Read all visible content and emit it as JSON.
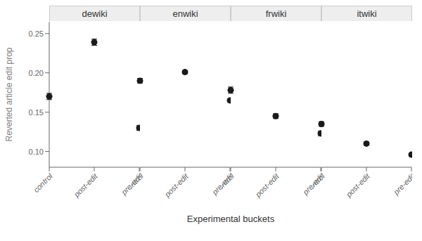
{
  "chart_data": {
    "type": "scatter",
    "xlabel": "Experimental buckets",
    "ylabel": "Reverted article edit prop",
    "categories": [
      "control",
      "post-edit",
      "pre-edit"
    ],
    "panels": [
      {
        "title": "dewiki",
        "values": [
          0.17,
          0.239,
          0.13
        ],
        "yerr_low": [
          0.004,
          0.004,
          0.003
        ],
        "yerr_high": [
          0.004,
          0.004,
          0.003
        ]
      },
      {
        "title": "enwiki",
        "values": [
          0.19,
          0.201,
          0.165
        ],
        "yerr_low": [
          0.003,
          0.002,
          0.002
        ],
        "yerr_high": [
          0.003,
          0.002,
          0.002
        ]
      },
      {
        "title": "frwiki",
        "values": [
          0.178,
          0.145,
          0.123
        ],
        "yerr_low": [
          0.004,
          0.003,
          0.003
        ],
        "yerr_high": [
          0.004,
          0.003,
          0.003
        ]
      },
      {
        "title": "itwiki",
        "values": [
          0.135,
          0.11,
          0.096
        ],
        "yerr_low": [
          0.003,
          0.002,
          0.002
        ],
        "yerr_high": [
          0.003,
          0.002,
          0.002
        ]
      }
    ],
    "ylim": [
      0.08,
      0.265
    ],
    "yticks": [
      {
        "value": 0.1,
        "label": "0.10"
      },
      0.15,
      {
        "value": 0.2,
        "label": "0.20"
      },
      0.25
    ],
    "color": "#1a1a1a",
    "marker": "circle"
  }
}
